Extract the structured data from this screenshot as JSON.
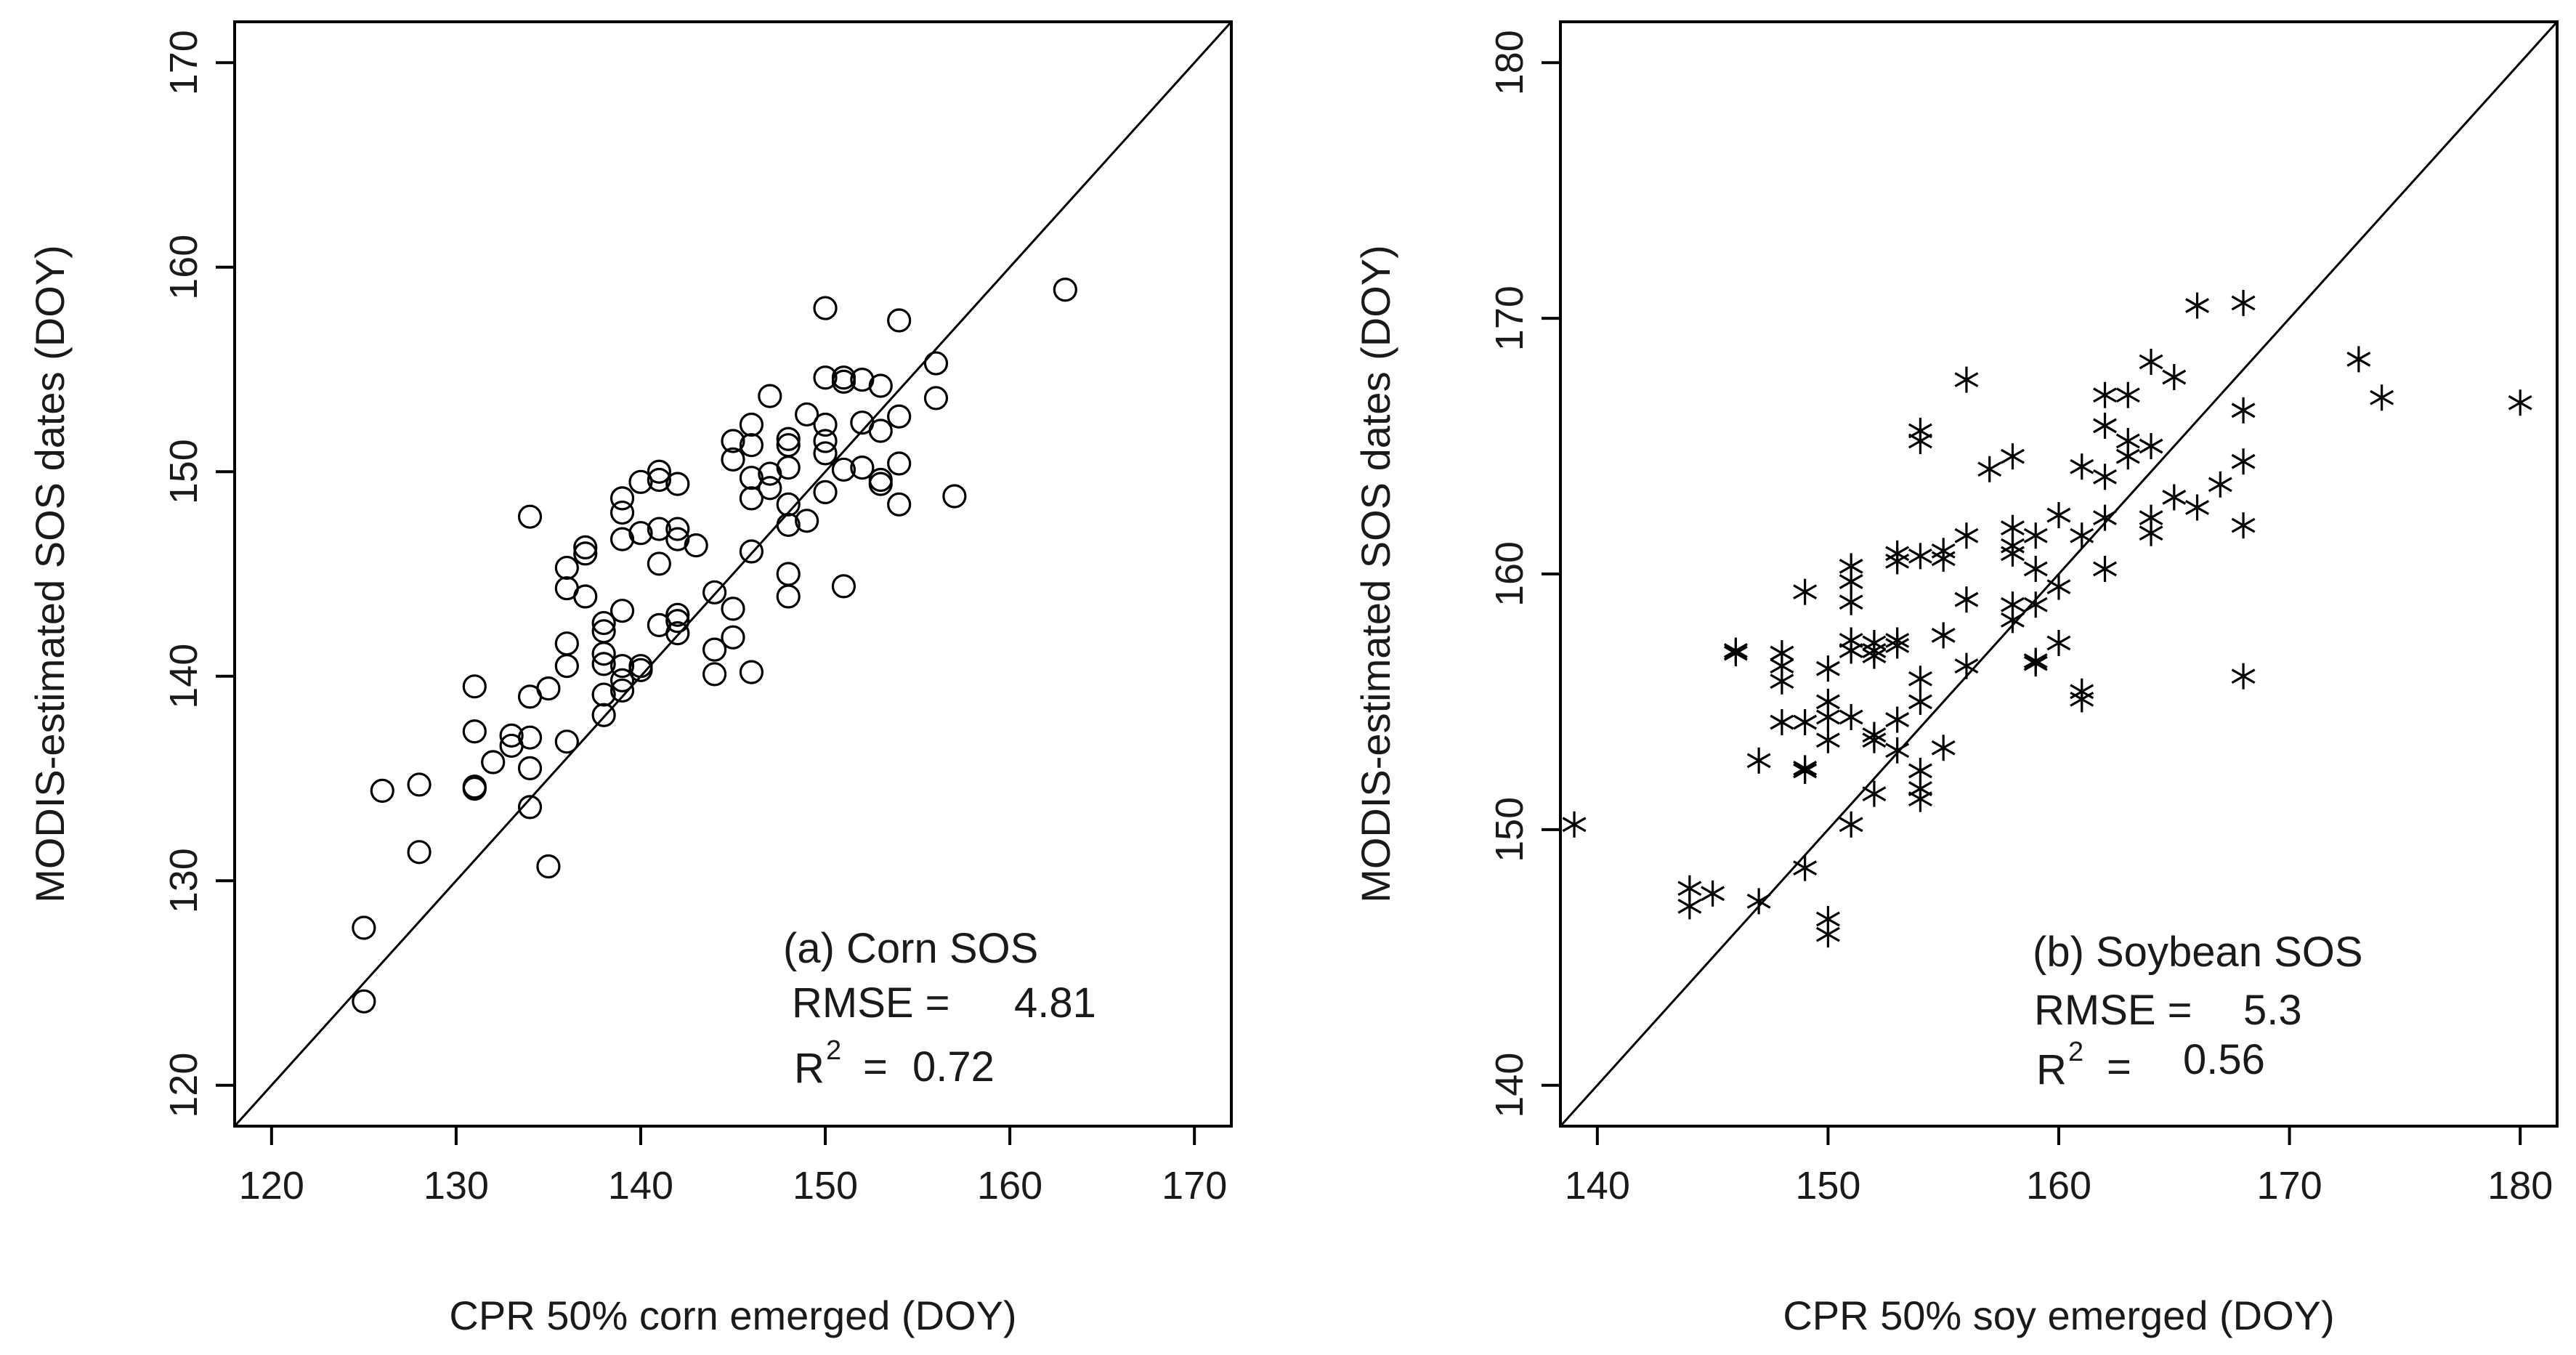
{
  "chart_data": [
    {
      "type": "scatter",
      "id": "corn",
      "title": "(a) Corn SOS",
      "xlabel": "CPR 50% corn emerged (DOY)",
      "ylabel": "MODIS-estimated SOS dates (DOY)",
      "xlim": [
        118,
        172
      ],
      "ylim": [
        118,
        172
      ],
      "xticks": [
        120,
        130,
        140,
        150,
        160,
        170
      ],
      "yticks": [
        120,
        130,
        140,
        150,
        160,
        170
      ],
      "marker": "circle",
      "reference_line": "1:1",
      "stats": {
        "rmse_label": "RMSE =",
        "rmse_value": "4.81",
        "r2_label": "R",
        "r2_sup": "2",
        "r2_eq": "=",
        "r2_value": "0.72"
      },
      "points": [
        [
          125,
          127.7
        ],
        [
          125,
          124.1
        ],
        [
          126,
          134.4
        ],
        [
          128,
          134.7
        ],
        [
          128,
          131.4
        ],
        [
          131,
          139.5
        ],
        [
          131,
          137.3
        ],
        [
          131,
          134.6
        ],
        [
          131,
          134.5
        ],
        [
          132,
          135.8
        ],
        [
          133,
          137.1
        ],
        [
          133,
          136.6
        ],
        [
          134,
          147.8
        ],
        [
          134,
          139
        ],
        [
          134,
          137
        ],
        [
          134,
          135.5
        ],
        [
          134,
          133.6
        ],
        [
          135,
          139.4
        ],
        [
          135,
          130.7
        ],
        [
          136,
          145.3
        ],
        [
          136,
          144.3
        ],
        [
          136,
          141.6
        ],
        [
          136,
          140.5
        ],
        [
          136,
          136.8
        ],
        [
          137,
          146.3
        ],
        [
          137,
          146
        ],
        [
          137,
          143.9
        ],
        [
          138,
          142.6
        ],
        [
          138,
          142.2
        ],
        [
          138,
          141.1
        ],
        [
          138,
          140.6
        ],
        [
          138,
          139.1
        ],
        [
          138,
          138.1
        ],
        [
          139,
          148.7
        ],
        [
          139,
          148
        ],
        [
          139,
          146.7
        ],
        [
          139,
          143.2
        ],
        [
          139,
          140.5
        ],
        [
          139,
          139.8
        ],
        [
          139,
          139.3
        ],
        [
          140,
          149.5
        ],
        [
          140,
          147
        ],
        [
          140,
          140.5
        ],
        [
          140,
          140.3
        ],
        [
          141,
          150
        ],
        [
          141,
          149.6
        ],
        [
          141,
          147.2
        ],
        [
          141,
          145.5
        ],
        [
          141,
          142.5
        ],
        [
          142,
          149.4
        ],
        [
          142,
          147.2
        ],
        [
          142,
          146.7
        ],
        [
          142,
          143
        ],
        [
          142,
          142.7
        ],
        [
          142,
          142.1
        ],
        [
          143,
          146.4
        ],
        [
          144,
          144.1
        ],
        [
          144,
          141.3
        ],
        [
          144,
          140.1
        ],
        [
          145,
          151.5
        ],
        [
          145,
          150.6
        ],
        [
          145,
          143.3
        ],
        [
          145,
          141.9
        ],
        [
          146,
          152.3
        ],
        [
          146,
          151.3
        ],
        [
          146,
          149.7
        ],
        [
          146,
          148.7
        ],
        [
          146,
          146.1
        ],
        [
          146,
          140.2
        ],
        [
          147,
          153.7
        ],
        [
          147,
          149.9
        ],
        [
          147,
          149.2
        ],
        [
          148,
          151.6
        ],
        [
          148,
          151.3
        ],
        [
          148,
          150.2
        ],
        [
          148,
          148.4
        ],
        [
          148,
          147.4
        ],
        [
          148,
          145
        ],
        [
          148,
          143.9
        ],
        [
          149,
          152.8
        ],
        [
          149,
          147.6
        ],
        [
          150,
          158
        ],
        [
          150,
          154.6
        ],
        [
          150,
          152.3
        ],
        [
          150,
          151.5
        ],
        [
          150,
          150.9
        ],
        [
          150,
          149
        ],
        [
          151,
          154.6
        ],
        [
          151,
          154.4
        ],
        [
          151,
          150.1
        ],
        [
          151,
          144.4
        ],
        [
          152,
          154.5
        ],
        [
          152,
          152.4
        ],
        [
          152,
          150.2
        ],
        [
          153,
          154.2
        ],
        [
          153,
          152
        ],
        [
          153,
          149.6
        ],
        [
          153,
          149.4
        ],
        [
          154,
          157.4
        ],
        [
          154,
          152.7
        ],
        [
          154,
          150.4
        ],
        [
          154,
          148.4
        ],
        [
          156,
          155.3
        ],
        [
          156,
          153.6
        ],
        [
          157,
          148.8
        ],
        [
          163,
          158.9
        ]
      ]
    },
    {
      "type": "scatter",
      "id": "soybean",
      "title": "(b) Soybean SOS",
      "xlabel": "CPR 50% soy emerged (DOY)",
      "ylabel": "MODIS-estimated SOS dates (DOY)",
      "xlim": [
        138.4,
        181.6
      ],
      "ylim": [
        138.4,
        181.6
      ],
      "xticks": [
        140,
        150,
        160,
        170,
        180
      ],
      "yticks": [
        140,
        150,
        160,
        170,
        180
      ],
      "marker": "asterisk",
      "reference_line": "1:1",
      "stats": {
        "rmse_label": "RMSE =",
        "rmse_value": "5.3",
        "r2_label": "R",
        "r2_sup": "2",
        "r2_eq": "=",
        "r2_value": "0.56"
      },
      "points": [
        [
          139,
          150.2
        ],
        [
          144,
          147.7
        ],
        [
          144,
          147
        ],
        [
          145,
          147.5
        ],
        [
          146,
          156.9
        ],
        [
          146,
          157
        ],
        [
          147,
          152.7
        ],
        [
          147,
          147.2
        ],
        [
          148,
          156.9
        ],
        [
          148,
          156.4
        ],
        [
          148,
          155.8
        ],
        [
          148,
          154.2
        ],
        [
          149,
          159.3
        ],
        [
          149,
          154.2
        ],
        [
          149,
          152.4
        ],
        [
          149,
          152.3
        ],
        [
          149,
          148.5
        ],
        [
          150,
          156.3
        ],
        [
          150,
          155
        ],
        [
          150,
          154.4
        ],
        [
          150,
          153.5
        ],
        [
          150,
          146.5
        ],
        [
          150,
          145.9
        ],
        [
          151,
          160.3
        ],
        [
          151,
          159.7
        ],
        [
          151,
          158.9
        ],
        [
          151,
          157.4
        ],
        [
          151,
          157
        ],
        [
          151,
          154.4
        ],
        [
          151,
          150.2
        ],
        [
          152,
          157.3
        ],
        [
          152,
          157
        ],
        [
          152,
          156.8
        ],
        [
          152,
          153.7
        ],
        [
          152,
          153.5
        ],
        [
          152,
          151.4
        ],
        [
          153,
          160.8
        ],
        [
          153,
          160.5
        ],
        [
          153,
          157.4
        ],
        [
          153,
          157.2
        ],
        [
          153,
          154.3
        ],
        [
          153,
          153.1
        ],
        [
          154,
          165.6
        ],
        [
          154,
          165.2
        ],
        [
          154,
          160.7
        ],
        [
          154,
          155.9
        ],
        [
          154,
          155
        ],
        [
          154,
          152.3
        ],
        [
          154,
          151.6
        ],
        [
          154,
          151.2
        ],
        [
          155,
          160.9
        ],
        [
          155,
          160.6
        ],
        [
          155,
          157.6
        ],
        [
          155,
          153.2
        ],
        [
          156,
          167.6
        ],
        [
          156,
          161.5
        ],
        [
          156,
          159
        ],
        [
          156,
          156.4
        ],
        [
          157,
          164.1
        ],
        [
          158,
          164.6
        ],
        [
          158,
          161.8
        ],
        [
          158,
          161.1
        ],
        [
          158,
          160.8
        ],
        [
          158,
          158.8
        ],
        [
          158,
          158.2
        ],
        [
          159,
          161.5
        ],
        [
          159,
          160.2
        ],
        [
          159,
          158.8
        ],
        [
          159,
          156.6
        ],
        [
          159,
          156.5
        ],
        [
          160,
          162.3
        ],
        [
          160,
          159.5
        ],
        [
          160,
          157.3
        ],
        [
          161,
          164.2
        ],
        [
          161,
          161.5
        ],
        [
          161,
          155.4
        ],
        [
          161,
          155.1
        ],
        [
          162,
          167
        ],
        [
          162,
          165.8
        ],
        [
          162,
          163.8
        ],
        [
          162,
          162.2
        ],
        [
          162,
          160.2
        ],
        [
          163,
          167
        ],
        [
          163,
          165.2
        ],
        [
          163,
          164.6
        ],
        [
          164,
          168.3
        ],
        [
          164,
          165
        ],
        [
          164,
          162.2
        ],
        [
          164,
          161.6
        ],
        [
          165,
          167.7
        ],
        [
          165,
          163
        ],
        [
          166,
          170.5
        ],
        [
          166,
          162.6
        ],
        [
          167,
          163.5
        ],
        [
          168,
          170.6
        ],
        [
          168,
          166.4
        ],
        [
          168,
          164.4
        ],
        [
          168,
          161.9
        ],
        [
          168,
          156
        ],
        [
          173,
          168.4
        ],
        [
          174,
          166.9
        ],
        [
          180,
          166.7
        ]
      ]
    }
  ]
}
